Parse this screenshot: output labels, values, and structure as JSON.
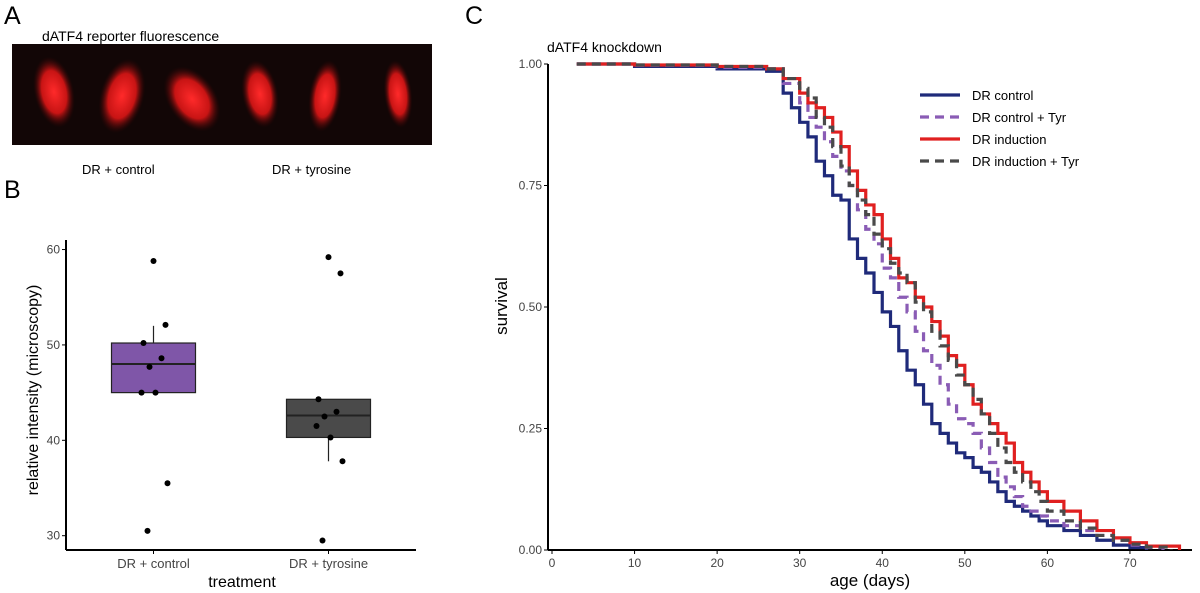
{
  "panels": {
    "a": {
      "letter": "A",
      "title": "dATF4 reporter fluorescence",
      "labels": [
        "DR + control",
        "DR + tyrosine"
      ]
    },
    "b": {
      "letter": "B"
    },
    "c": {
      "letter": "C"
    }
  },
  "chart_data": [
    {
      "type": "box",
      "panel": "B",
      "title": "",
      "xlabel": "treatment",
      "ylabel": "relative intensity (microscopy)",
      "categories": [
        "DR + control",
        "DR + tyrosine"
      ],
      "ylim": [
        28.5,
        61
      ],
      "yticks": [
        30,
        40,
        50,
        60
      ],
      "boxes": [
        {
          "category": "DR + control",
          "color": "#7f56a8",
          "q1": 45.0,
          "median": 48.0,
          "q3": 50.2,
          "whisker_low": 45.0,
          "whisker_high": 52.0,
          "points": [
            58.8,
            52.1,
            50.2,
            48.6,
            47.7,
            45.0,
            45.0,
            35.5,
            30.5
          ]
        },
        {
          "category": "DR + tyrosine",
          "color": "#4a4a4a",
          "q1": 40.3,
          "median": 42.6,
          "q3": 44.3,
          "whisker_low": 37.8,
          "whisker_high": 44.3,
          "points": [
            59.2,
            57.5,
            44.3,
            43.0,
            42.5,
            41.5,
            40.3,
            37.8,
            29.5
          ]
        }
      ],
      "grid": false
    },
    {
      "type": "line",
      "panel": "C",
      "title": "dATF4 knockdown",
      "xlabel": "age (days)",
      "ylabel": "survival",
      "xlim": [
        0,
        78
      ],
      "ylim": [
        0,
        1
      ],
      "xticks": [
        0,
        10,
        20,
        30,
        40,
        50,
        60,
        70
      ],
      "yticks": [
        "0.00",
        "0.25",
        "0.50",
        "0.75",
        "1.00"
      ],
      "legend_position": "top-right",
      "grid": false,
      "series": [
        {
          "name": "DR control",
          "color": "#1f2a7a",
          "style": "solid",
          "x": [
            3,
            10,
            20,
            26,
            28,
            29,
            30,
            31,
            32,
            33,
            34,
            35,
            36,
            37,
            38,
            39,
            40,
            41,
            42,
            43,
            44,
            45,
            46,
            47,
            48,
            49,
            50,
            51,
            52,
            53,
            54,
            55,
            56,
            57,
            58,
            59,
            60,
            62,
            64,
            66,
            68,
            70,
            72
          ],
          "y": [
            1.0,
            0.995,
            0.99,
            0.985,
            0.94,
            0.91,
            0.88,
            0.85,
            0.8,
            0.77,
            0.73,
            0.72,
            0.64,
            0.6,
            0.57,
            0.53,
            0.49,
            0.46,
            0.41,
            0.37,
            0.34,
            0.3,
            0.26,
            0.24,
            0.22,
            0.2,
            0.19,
            0.17,
            0.16,
            0.14,
            0.12,
            0.1,
            0.09,
            0.08,
            0.07,
            0.06,
            0.05,
            0.04,
            0.03,
            0.02,
            0.01,
            0.005,
            0.0
          ]
        },
        {
          "name": "DR control + Tyr",
          "color": "#8a5cb5",
          "style": "dashed",
          "x": [
            3,
            10,
            20,
            26,
            28,
            30,
            31,
            32,
            33,
            34,
            35,
            36,
            37,
            38,
            39,
            40,
            41,
            42,
            43,
            44,
            45,
            46,
            47,
            48,
            49,
            50,
            51,
            52,
            53,
            54,
            55,
            56,
            57,
            58,
            59,
            60,
            62,
            64,
            66,
            68,
            70,
            72,
            74
          ],
          "y": [
            1.0,
            0.997,
            0.993,
            0.99,
            0.96,
            0.92,
            0.89,
            0.87,
            0.84,
            0.81,
            0.78,
            0.75,
            0.7,
            0.66,
            0.63,
            0.58,
            0.56,
            0.52,
            0.49,
            0.45,
            0.41,
            0.38,
            0.34,
            0.3,
            0.27,
            0.26,
            0.24,
            0.21,
            0.18,
            0.15,
            0.13,
            0.11,
            0.09,
            0.08,
            0.07,
            0.06,
            0.05,
            0.04,
            0.03,
            0.02,
            0.01,
            0.005,
            0.0
          ]
        },
        {
          "name": "DR induction",
          "color": "#e02020",
          "style": "solid",
          "x": [
            3,
            10,
            20,
            26,
            28,
            30,
            31,
            32,
            33,
            34,
            35,
            36,
            37,
            38,
            39,
            40,
            41,
            42,
            43,
            44,
            45,
            46,
            47,
            48,
            49,
            50,
            51,
            52,
            53,
            54,
            55,
            56,
            57,
            58,
            59,
            60,
            62,
            64,
            66,
            68,
            70,
            72,
            76
          ],
          "y": [
            1.0,
            0.998,
            0.995,
            0.99,
            0.97,
            0.94,
            0.92,
            0.91,
            0.89,
            0.86,
            0.83,
            0.78,
            0.74,
            0.71,
            0.69,
            0.64,
            0.6,
            0.56,
            0.55,
            0.52,
            0.5,
            0.47,
            0.44,
            0.4,
            0.38,
            0.34,
            0.3,
            0.28,
            0.26,
            0.24,
            0.22,
            0.18,
            0.16,
            0.14,
            0.12,
            0.1,
            0.08,
            0.06,
            0.04,
            0.025,
            0.015,
            0.008,
            0.0
          ]
        },
        {
          "name": "DR induction + Tyr",
          "color": "#4a4a4a",
          "style": "dashed",
          "x": [
            3,
            10,
            20,
            26,
            28,
            30,
            31,
            32,
            33,
            34,
            35,
            36,
            37,
            38,
            39,
            40,
            41,
            42,
            43,
            44,
            45,
            46,
            47,
            48,
            49,
            50,
            51,
            52,
            53,
            54,
            55,
            56,
            57,
            58,
            59,
            60,
            62,
            64,
            66,
            68,
            70,
            72,
            75
          ],
          "y": [
            1.0,
            0.998,
            0.995,
            0.99,
            0.97,
            0.95,
            0.93,
            0.89,
            0.87,
            0.83,
            0.79,
            0.75,
            0.72,
            0.69,
            0.65,
            0.62,
            0.59,
            0.57,
            0.55,
            0.51,
            0.49,
            0.45,
            0.42,
            0.39,
            0.36,
            0.34,
            0.31,
            0.28,
            0.24,
            0.21,
            0.18,
            0.16,
            0.14,
            0.12,
            0.1,
            0.08,
            0.06,
            0.045,
            0.03,
            0.02,
            0.012,
            0.006,
            0.0
          ]
        }
      ]
    }
  ]
}
